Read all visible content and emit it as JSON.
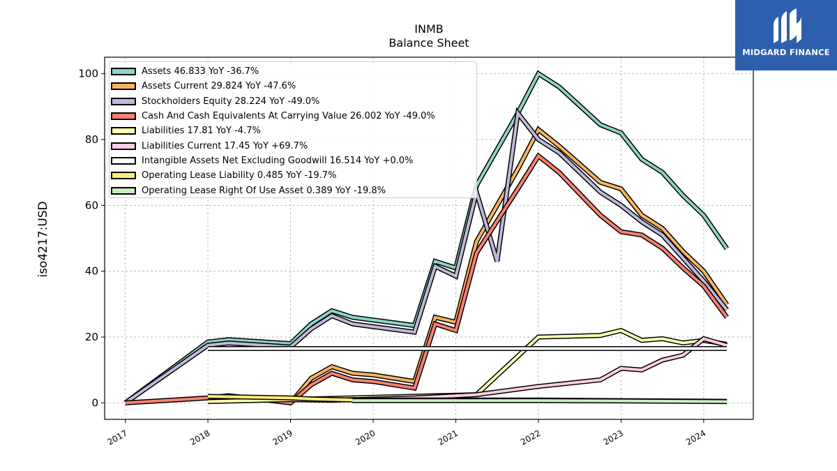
{
  "header": {
    "title": "INMB",
    "subtitle": "Balance  Sheet"
  },
  "brand": {
    "name": "MIDGARD FINANCE",
    "color": "#2d5fae"
  },
  "chart_data": {
    "type": "line",
    "title": "INMB",
    "subtitle": "Balance  Sheet",
    "ylabel": "iso4217:USD",
    "xlabel": "",
    "xlim": [
      2016.75,
      2024.6
    ],
    "ylim": [
      -5,
      105
    ],
    "xticks": [
      2017,
      2018,
      2019,
      2020,
      2021,
      2022,
      2023,
      2024
    ],
    "xtick_labels": [
      "2017",
      "2018",
      "2019",
      "2020",
      "2021",
      "2022",
      "2023",
      "2024"
    ],
    "yticks": [
      0,
      20,
      40,
      60,
      80,
      100
    ],
    "ytick_labels": [
      "0",
      "20",
      "40",
      "60",
      "80",
      "100"
    ],
    "grid": true,
    "legend_position": "top-left",
    "series": [
      {
        "name": "Assets",
        "legend": "Assets  46.833 YoY -36.7%",
        "color": "#8dd3c7",
        "points": [
          [
            2017.0,
            0.0
          ],
          [
            2018.0,
            18.5
          ],
          [
            2018.25,
            19.2
          ],
          [
            2019.0,
            18.0
          ],
          [
            2019.25,
            24.0
          ],
          [
            2019.5,
            28.0
          ],
          [
            2019.75,
            26.0
          ],
          [
            2020.5,
            23.5
          ],
          [
            2020.75,
            43.0
          ],
          [
            2021.0,
            41.0
          ],
          [
            2021.25,
            66.0
          ],
          [
            2021.75,
            88.0
          ],
          [
            2022.0,
            100.0
          ],
          [
            2022.25,
            96.0
          ],
          [
            2022.75,
            84.5
          ],
          [
            2023.0,
            82.0
          ],
          [
            2023.25,
            74.0
          ],
          [
            2023.5,
            70.0
          ],
          [
            2023.75,
            63.0
          ],
          [
            2024.0,
            57.0
          ],
          [
            2024.28,
            46.833
          ]
        ]
      },
      {
        "name": "Assets Current",
        "legend": "Assets Current  29.824 YoY -47.6%",
        "color": "#fdb462",
        "points": [
          [
            2019.0,
            0.0
          ],
          [
            2019.25,
            7.5
          ],
          [
            2019.5,
            11.0
          ],
          [
            2019.75,
            9.0
          ],
          [
            2020.0,
            8.5
          ],
          [
            2020.5,
            6.5
          ],
          [
            2020.75,
            26.0
          ],
          [
            2021.0,
            24.5
          ],
          [
            2021.25,
            49.0
          ],
          [
            2021.75,
            71.0
          ],
          [
            2022.0,
            83.0
          ],
          [
            2022.25,
            78.0
          ],
          [
            2022.75,
            67.0
          ],
          [
            2023.0,
            65.0
          ],
          [
            2023.25,
            57.0
          ],
          [
            2023.5,
            53.0
          ],
          [
            2023.75,
            46.0
          ],
          [
            2024.0,
            40.0
          ],
          [
            2024.28,
            29.824
          ]
        ]
      },
      {
        "name": "Stockholders Equity",
        "legend": "Stockholders Equity  28.224 YoY -49.0%",
        "color": "#bebada",
        "points": [
          [
            2017.0,
            0.0
          ],
          [
            2018.0,
            17.5
          ],
          [
            2018.25,
            18.2
          ],
          [
            2019.0,
            17.0
          ],
          [
            2019.25,
            22.5
          ],
          [
            2019.5,
            26.5
          ],
          [
            2019.75,
            24.0
          ],
          [
            2020.5,
            21.5
          ],
          [
            2020.75,
            41.5
          ],
          [
            2021.0,
            38.5
          ],
          [
            2021.25,
            64.0
          ],
          [
            2021.5,
            43.0
          ],
          [
            2021.75,
            88.0
          ],
          [
            2022.0,
            80.0
          ],
          [
            2022.25,
            76.0
          ],
          [
            2022.75,
            64.0
          ],
          [
            2023.0,
            60.0
          ],
          [
            2023.25,
            55.0
          ],
          [
            2023.5,
            51.0
          ],
          [
            2023.75,
            44.0
          ],
          [
            2024.0,
            37.0
          ],
          [
            2024.28,
            28.224
          ]
        ]
      },
      {
        "name": "Cash And Cash Equivalents At Carrying Value",
        "legend": "Cash And Cash Equivalents At Carrying Value  26.002 YoY -49.0%",
        "color": "#fb8072",
        "points": [
          [
            2017.0,
            0.0
          ],
          [
            2018.0,
            1.5
          ],
          [
            2018.25,
            2.2
          ],
          [
            2019.0,
            0.0
          ],
          [
            2019.25,
            5.5
          ],
          [
            2019.5,
            9.0
          ],
          [
            2019.75,
            7.0
          ],
          [
            2020.0,
            6.5
          ],
          [
            2020.5,
            4.5
          ],
          [
            2020.75,
            24.0
          ],
          [
            2021.0,
            22.0
          ],
          [
            2021.25,
            45.5
          ],
          [
            2021.75,
            65.0
          ],
          [
            2022.0,
            75.0
          ],
          [
            2022.25,
            70.0
          ],
          [
            2022.75,
            57.0
          ],
          [
            2023.0,
            52.0
          ],
          [
            2023.25,
            51.0
          ],
          [
            2023.5,
            47.0
          ],
          [
            2023.75,
            41.0
          ],
          [
            2024.0,
            35.5
          ],
          [
            2024.28,
            26.002
          ]
        ]
      },
      {
        "name": "Liabilities",
        "legend": "Liabilities  17.81 YoY -4.7%",
        "color": "#ffffb3",
        "points": [
          [
            2018.0,
            0.4
          ],
          [
            2019.0,
            1.0
          ],
          [
            2019.25,
            1.2
          ],
          [
            2021.25,
            2.5
          ],
          [
            2022.0,
            20.0
          ],
          [
            2022.75,
            20.5
          ],
          [
            2023.0,
            22.0
          ],
          [
            2023.25,
            19.0
          ],
          [
            2023.5,
            19.5
          ],
          [
            2023.75,
            18.2
          ],
          [
            2024.0,
            19.0
          ],
          [
            2024.28,
            17.81
          ]
        ]
      },
      {
        "name": "Liabilities Current",
        "legend": "Liabilities Current  17.45 YoY +69.7%",
        "color": "#fccde5",
        "points": [
          [
            2019.0,
            1.0
          ],
          [
            2019.5,
            0.8
          ],
          [
            2020.5,
            1.5
          ],
          [
            2021.25,
            2.5
          ],
          [
            2022.0,
            5.0
          ],
          [
            2022.75,
            7.0
          ],
          [
            2023.0,
            10.5
          ],
          [
            2023.25,
            10.0
          ],
          [
            2023.5,
            13.0
          ],
          [
            2023.75,
            14.5
          ],
          [
            2024.0,
            19.5
          ],
          [
            2024.28,
            17.45
          ]
        ]
      },
      {
        "name": "Intangible Assets Net Excluding Goodwill",
        "legend": "Intangible Assets Net Excluding Goodwill  16.514 YoY +0.0%",
        "color": "#ffffff",
        "points": [
          [
            2018.0,
            16.514
          ],
          [
            2024.28,
            16.514
          ]
        ]
      },
      {
        "name": "Operating Lease Liability",
        "legend": "Operating Lease Liability  0.485 YoY -19.7%",
        "color": "#ffed6f",
        "points": [
          [
            2018.0,
            2.0
          ],
          [
            2019.0,
            1.5
          ],
          [
            2019.25,
            1.2
          ],
          [
            2019.75,
            0.9
          ],
          [
            2022.0,
            0.9
          ],
          [
            2023.0,
            0.7
          ],
          [
            2024.28,
            0.485
          ]
        ]
      },
      {
        "name": "Operating Lease Right Of Use Asset",
        "legend": "Operating Lease Right Of Use Asset  0.389 YoY -19.8%",
        "color": "#ccebc5",
        "points": [
          [
            2019.75,
            0.7
          ],
          [
            2022.0,
            0.7
          ],
          [
            2023.0,
            0.6
          ],
          [
            2024.28,
            0.389
          ]
        ]
      }
    ]
  }
}
